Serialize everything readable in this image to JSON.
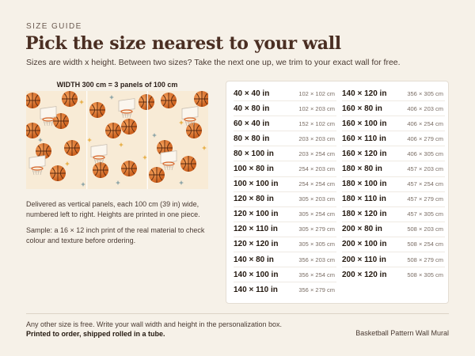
{
  "header": {
    "eyebrow": "SIZE GUIDE",
    "title": "Pick the size nearest to your wall",
    "subtitle": "Sizes are width x height. Between two sizes? Take the next one up, we trim to your exact wall for free."
  },
  "preview": {
    "width_caption": "WIDTH 300 cm = 3 panels of 100 cm",
    "image_icon": "basketball-pattern-mural-image",
    "panel_count": 3
  },
  "description": {
    "panels": "Delivered as vertical panels, each 100 cm (39 in) wide, numbered left to right. Heights are printed in one piece.",
    "sample": "Sample: a 16 × 12 inch print of the real material to check colour and texture before ordering."
  },
  "sizes_left": [
    {
      "in": "40 × 40 in",
      "cm": "102 × 102 cm"
    },
    {
      "in": "40 × 80 in",
      "cm": "102 × 203 cm"
    },
    {
      "in": "60 × 40 in",
      "cm": "152 × 102 cm"
    },
    {
      "in": "80 × 80 in",
      "cm": "203 × 203 cm"
    },
    {
      "in": "80 × 100 in",
      "cm": "203 × 254 cm"
    },
    {
      "in": "100 × 80 in",
      "cm": "254 × 203 cm"
    },
    {
      "in": "100 × 100 in",
      "cm": "254 × 254 cm"
    },
    {
      "in": "120 × 80 in",
      "cm": "305 × 203 cm"
    },
    {
      "in": "120 × 100 in",
      "cm": "305 × 254 cm"
    },
    {
      "in": "120 × 110 in",
      "cm": "305 × 279 cm"
    },
    {
      "in": "120 × 120 in",
      "cm": "305 × 305 cm"
    },
    {
      "in": "140 × 80 in",
      "cm": "356 × 203 cm"
    },
    {
      "in": "140 × 100 in",
      "cm": "356 × 254 cm"
    },
    {
      "in": "140 × 110 in",
      "cm": "356 × 279 cm"
    }
  ],
  "sizes_right": [
    {
      "in": "140 × 120 in",
      "cm": "356 × 305 cm"
    },
    {
      "in": "160 × 80 in",
      "cm": "406 × 203 cm"
    },
    {
      "in": "160 × 100 in",
      "cm": "406 × 254 cm"
    },
    {
      "in": "160 × 110 in",
      "cm": "406 × 279 cm"
    },
    {
      "in": "160 × 120 in",
      "cm": "406 × 305 cm"
    },
    {
      "in": "180 × 80 in",
      "cm": "457 × 203 cm"
    },
    {
      "in": "180 × 100 in",
      "cm": "457 × 254 cm"
    },
    {
      "in": "180 × 110 in",
      "cm": "457 × 279 cm"
    },
    {
      "in": "180 × 120 in",
      "cm": "457 × 305 cm"
    },
    {
      "in": "200 × 80 in",
      "cm": "508 × 203 cm"
    },
    {
      "in": "200 × 100 in",
      "cm": "508 × 254 cm"
    },
    {
      "in": "200 × 110 in",
      "cm": "508 × 279 cm"
    },
    {
      "in": "200 × 120 in",
      "cm": "508 × 305 cm"
    }
  ],
  "footer": {
    "custom_note": "Any other size is free. Write your wall width and height in the personalization box.",
    "shipping_note": "Printed to order, shipped rolled in a tube.",
    "product_name": "Basketball Pattern Wall Mural"
  },
  "colors": {
    "background": "#f6f1e8",
    "title": "#4a2e22",
    "ball": "#e07a2e",
    "mural_bg": "#f8ebd6"
  }
}
